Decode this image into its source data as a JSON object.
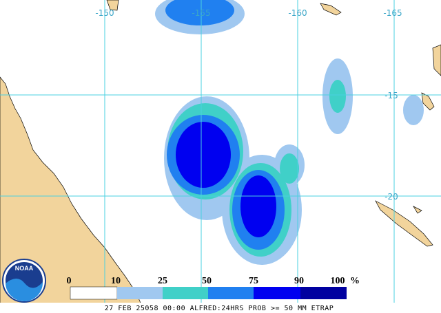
{
  "map": {
    "longitude_labels": [
      "-150",
      "-155",
      "-160",
      "-165"
    ],
    "latitude_labels": [
      "-15",
      "-20"
    ],
    "logo": "NOAA",
    "legend": {
      "labels": [
        "0",
        "10",
        "25",
        "50",
        "75",
        "90",
        "100"
      ],
      "unit": "%"
    },
    "caption": "27 FEB 25058 00:00 ALFRED:24HRS PROB >= 50 MM ETRAP"
  }
}
